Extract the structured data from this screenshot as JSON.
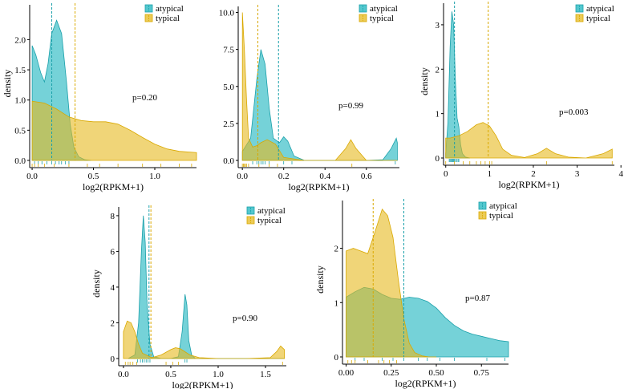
{
  "colors": {
    "atypical": "#19b4be",
    "typical": "#e6b91e",
    "atypical_line": "#1aa0aa",
    "typical_line": "#d9a800",
    "axis": "#000000"
  },
  "legend": {
    "atypical": "atypical",
    "typical": "typical"
  },
  "chart_data": [
    {
      "type": "area",
      "ylabel": "density",
      "xlabel": "log2(RPKM+1)",
      "pvalue": "p=0.20",
      "xlim": [
        -0.02,
        1.34
      ],
      "ylim": [
        0,
        2.55
      ],
      "xticks": [
        0.0,
        0.5,
        1.0
      ],
      "xtick_labels": [
        "0.0",
        "0.5",
        "1.0"
      ],
      "yticks": [
        0.0,
        0.5,
        1.0,
        1.5,
        2.0
      ],
      "ytick_labels": [
        "0.0",
        "0.5",
        "1.0",
        "1.5",
        "2.0"
      ],
      "series": [
        {
          "name": "atypical",
          "means": 0.16,
          "x": [
            0.0,
            0.03,
            0.07,
            0.1,
            0.13,
            0.16,
            0.2,
            0.24,
            0.28,
            0.31,
            0.34,
            0.38,
            0.43,
            0.48
          ],
          "y": [
            1.9,
            1.75,
            1.45,
            1.3,
            1.6,
            2.1,
            2.32,
            2.1,
            1.3,
            0.6,
            0.22,
            0.06,
            0.01,
            0.0
          ],
          "rug": [
            0.02,
            0.05,
            0.08,
            0.12,
            0.16,
            0.19,
            0.22,
            0.24,
            0.27,
            0.3
          ]
        },
        {
          "name": "typical",
          "means": 0.35,
          "x": [
            0.0,
            0.1,
            0.2,
            0.3,
            0.4,
            0.5,
            0.6,
            0.7,
            0.8,
            0.9,
            1.0,
            1.1,
            1.2,
            1.34
          ],
          "y": [
            0.98,
            0.95,
            0.85,
            0.72,
            0.66,
            0.64,
            0.64,
            0.6,
            0.5,
            0.38,
            0.27,
            0.19,
            0.15,
            0.13
          ],
          "rug": [
            0.0,
            0.02,
            0.05,
            0.1,
            0.18,
            0.3,
            0.45,
            0.55,
            0.7,
            0.9,
            1.05,
            1.2,
            1.3
          ]
        }
      ]
    },
    {
      "type": "area",
      "ylabel": "",
      "xlabel": "log2(RPKM+1)",
      "pvalue": "p=0.99",
      "xlim": [
        -0.02,
        0.76
      ],
      "ylim": [
        0,
        10.3
      ],
      "xticks": [
        0.0,
        0.2,
        0.4,
        0.6
      ],
      "xtick_labels": [
        "0.0",
        "0.2",
        "0.4",
        "0.6"
      ],
      "yticks": [
        0.0,
        2.5,
        5.0,
        7.5,
        10.0
      ],
      "ytick_labels": [
        "0.0",
        "2.5",
        "5.0",
        "7.5",
        "10.0"
      ],
      "series": [
        {
          "name": "atypical",
          "means": 0.175,
          "x": [
            0.0,
            0.04,
            0.07,
            0.09,
            0.11,
            0.13,
            0.15,
            0.18,
            0.2,
            0.22,
            0.25,
            0.3,
            0.4,
            0.5,
            0.6,
            0.68,
            0.72,
            0.745,
            0.75
          ],
          "y": [
            0.6,
            1.5,
            5.5,
            7.5,
            6.5,
            3.5,
            1.5,
            1.2,
            1.6,
            1.3,
            0.3,
            0.0,
            0.0,
            0.0,
            0.0,
            0.05,
            0.8,
            1.5,
            1.2
          ],
          "rug": [
            0.05,
            0.07,
            0.08,
            0.09,
            0.1,
            0.11,
            0.13,
            0.2,
            0.24,
            0.74
          ]
        },
        {
          "name": "typical",
          "means": 0.075,
          "x": [
            0.0,
            0.01,
            0.02,
            0.03,
            0.05,
            0.07,
            0.09,
            0.12,
            0.16,
            0.2,
            0.3,
            0.45,
            0.5,
            0.525,
            0.55,
            0.6,
            0.7,
            0.75
          ],
          "y": [
            10.0,
            7.5,
            4.2,
            1.5,
            0.9,
            1.0,
            1.2,
            1.4,
            1.1,
            0.2,
            0.0,
            0.0,
            0.8,
            1.4,
            0.8,
            0.0,
            0.0,
            0.0
          ],
          "rug": [
            0.0,
            0.005,
            0.01,
            0.015,
            0.02,
            0.03,
            0.08,
            0.13,
            0.17,
            0.53
          ]
        }
      ]
    },
    {
      "type": "area",
      "ylabel": "density",
      "xlabel": "log2(RPKM+1)",
      "pvalue": "p=0.003",
      "xlim": [
        -0.05,
        3.85
      ],
      "ylim": [
        0,
        3.45
      ],
      "xticks": [
        0,
        1,
        2,
        3,
        4
      ],
      "xtick_labels": [
        "0",
        "1",
        "2",
        "3",
        "4"
      ],
      "yticks": [
        0,
        1,
        2,
        3
      ],
      "ytick_labels": [
        "0",
        "1",
        "2",
        "3"
      ],
      "series": [
        {
          "name": "atypical",
          "means": 0.2,
          "x": [
            0.0,
            0.05,
            0.1,
            0.14,
            0.18,
            0.22,
            0.26,
            0.3,
            0.34,
            0.38,
            0.45,
            0.55
          ],
          "y": [
            0.1,
            0.8,
            2.5,
            3.3,
            3.0,
            1.8,
            0.9,
            0.7,
            0.3,
            0.1,
            0.02,
            0.0
          ],
          "rug": [
            0.08,
            0.1,
            0.12,
            0.14,
            0.16,
            0.18,
            0.2,
            0.22,
            0.25,
            0.28,
            0.3
          ]
        },
        {
          "name": "typical",
          "means": 0.97,
          "x": [
            0.0,
            0.1,
            0.3,
            0.5,
            0.7,
            0.85,
            1.0,
            1.15,
            1.3,
            1.5,
            1.8,
            2.1,
            2.3,
            2.5,
            2.8,
            3.2,
            3.6,
            3.8
          ],
          "y": [
            0.45,
            0.45,
            0.5,
            0.6,
            0.75,
            0.8,
            0.72,
            0.5,
            0.2,
            0.06,
            0.01,
            0.1,
            0.22,
            0.1,
            0.02,
            0.0,
            0.1,
            0.2
          ],
          "rug": [
            0.0,
            0.2,
            0.4,
            0.55,
            0.7,
            0.8,
            0.9,
            1.0,
            1.05,
            2.3,
            3.8
          ]
        }
      ]
    },
    {
      "type": "area",
      "ylabel": "density",
      "xlabel": "log2(RPKM+1)",
      "pvalue": "p=0.90",
      "xlim": [
        -0.05,
        1.72
      ],
      "ylim": [
        0,
        8.4
      ],
      "xticks": [
        0.0,
        0.5,
        1.0,
        1.5
      ],
      "xtick_labels": [
        "0.0",
        "0.5",
        "1.0",
        "1.5"
      ],
      "yticks": [
        0,
        2,
        4,
        6,
        8
      ],
      "ytick_labels": [
        "0",
        "2",
        "4",
        "6",
        "8"
      ],
      "series": [
        {
          "name": "atypical",
          "means": 0.27,
          "x": [
            0.05,
            0.12,
            0.16,
            0.19,
            0.21,
            0.23,
            0.25,
            0.28,
            0.32,
            0.4,
            0.5,
            0.58,
            0.62,
            0.65,
            0.67,
            0.69,
            0.72,
            0.76,
            0.9,
            1.2,
            1.5,
            1.7
          ],
          "y": [
            0.0,
            0.2,
            2.0,
            6.0,
            8.0,
            6.5,
            3.0,
            0.8,
            0.1,
            0.0,
            0.0,
            0.1,
            1.5,
            3.6,
            3.0,
            1.0,
            0.2,
            0.0,
            0.0,
            0.0,
            0.0,
            0.0
          ],
          "rug": [
            0.15,
            0.18,
            0.2,
            0.22,
            0.24,
            0.26,
            0.28,
            0.65,
            0.67
          ]
        },
        {
          "name": "typical",
          "means": 0.29,
          "x": [
            0.0,
            0.04,
            0.08,
            0.12,
            0.16,
            0.2,
            0.3,
            0.4,
            0.5,
            0.55,
            0.6,
            0.7,
            0.8,
            1.0,
            1.3,
            1.55,
            1.62,
            1.66,
            1.7
          ],
          "y": [
            1.5,
            2.1,
            2.0,
            1.5,
            0.8,
            0.3,
            0.05,
            0.2,
            0.5,
            0.6,
            0.55,
            0.2,
            0.05,
            0.0,
            0.0,
            0.05,
            0.4,
            0.7,
            0.5
          ],
          "rug": [
            0.02,
            0.05,
            0.07,
            0.1,
            0.14,
            0.45,
            0.52,
            0.58,
            1.68
          ]
        }
      ]
    },
    {
      "type": "area",
      "ylabel": "density",
      "xlabel": "log2(RPKM+1)",
      "pvalue": "p=0.87",
      "xlim": [
        -0.02,
        0.9
      ],
      "ylim": [
        0,
        2.85
      ],
      "xticks": [
        0.0,
        0.25,
        0.5,
        0.75
      ],
      "xtick_labels": [
        "0.00",
        "0.25",
        "0.50",
        "0.75"
      ],
      "yticks": [
        0,
        1,
        2
      ],
      "ytick_labels": [
        "0",
        "1",
        "2"
      ],
      "series": [
        {
          "name": "atypical",
          "means": 0.32,
          "x": [
            0.0,
            0.05,
            0.1,
            0.15,
            0.2,
            0.25,
            0.3,
            0.35,
            0.4,
            0.45,
            0.5,
            0.55,
            0.6,
            0.65,
            0.7,
            0.75,
            0.8,
            0.85,
            0.9
          ],
          "y": [
            1.1,
            1.2,
            1.28,
            1.25,
            1.15,
            1.08,
            1.06,
            1.1,
            1.08,
            1.02,
            0.9,
            0.72,
            0.58,
            0.48,
            0.42,
            0.38,
            0.34,
            0.3,
            0.28
          ],
          "rug": [
            0.05,
            0.1,
            0.2,
            0.26,
            0.32,
            0.4,
            0.45,
            0.52,
            0.6,
            0.78,
            0.88
          ]
        },
        {
          "name": "typical",
          "means": 0.15,
          "x": [
            0.0,
            0.04,
            0.08,
            0.12,
            0.16,
            0.2,
            0.23,
            0.26,
            0.29,
            0.32,
            0.35,
            0.38,
            0.42,
            0.46,
            0.5
          ],
          "y": [
            1.95,
            2.0,
            1.95,
            1.9,
            2.3,
            2.72,
            2.6,
            2.2,
            1.4,
            0.7,
            0.25,
            0.08,
            0.02,
            0.0,
            0.0
          ],
          "rug": [
            0.01,
            0.03,
            0.05,
            0.12,
            0.18,
            0.21,
            0.24,
            0.28
          ]
        }
      ]
    }
  ]
}
